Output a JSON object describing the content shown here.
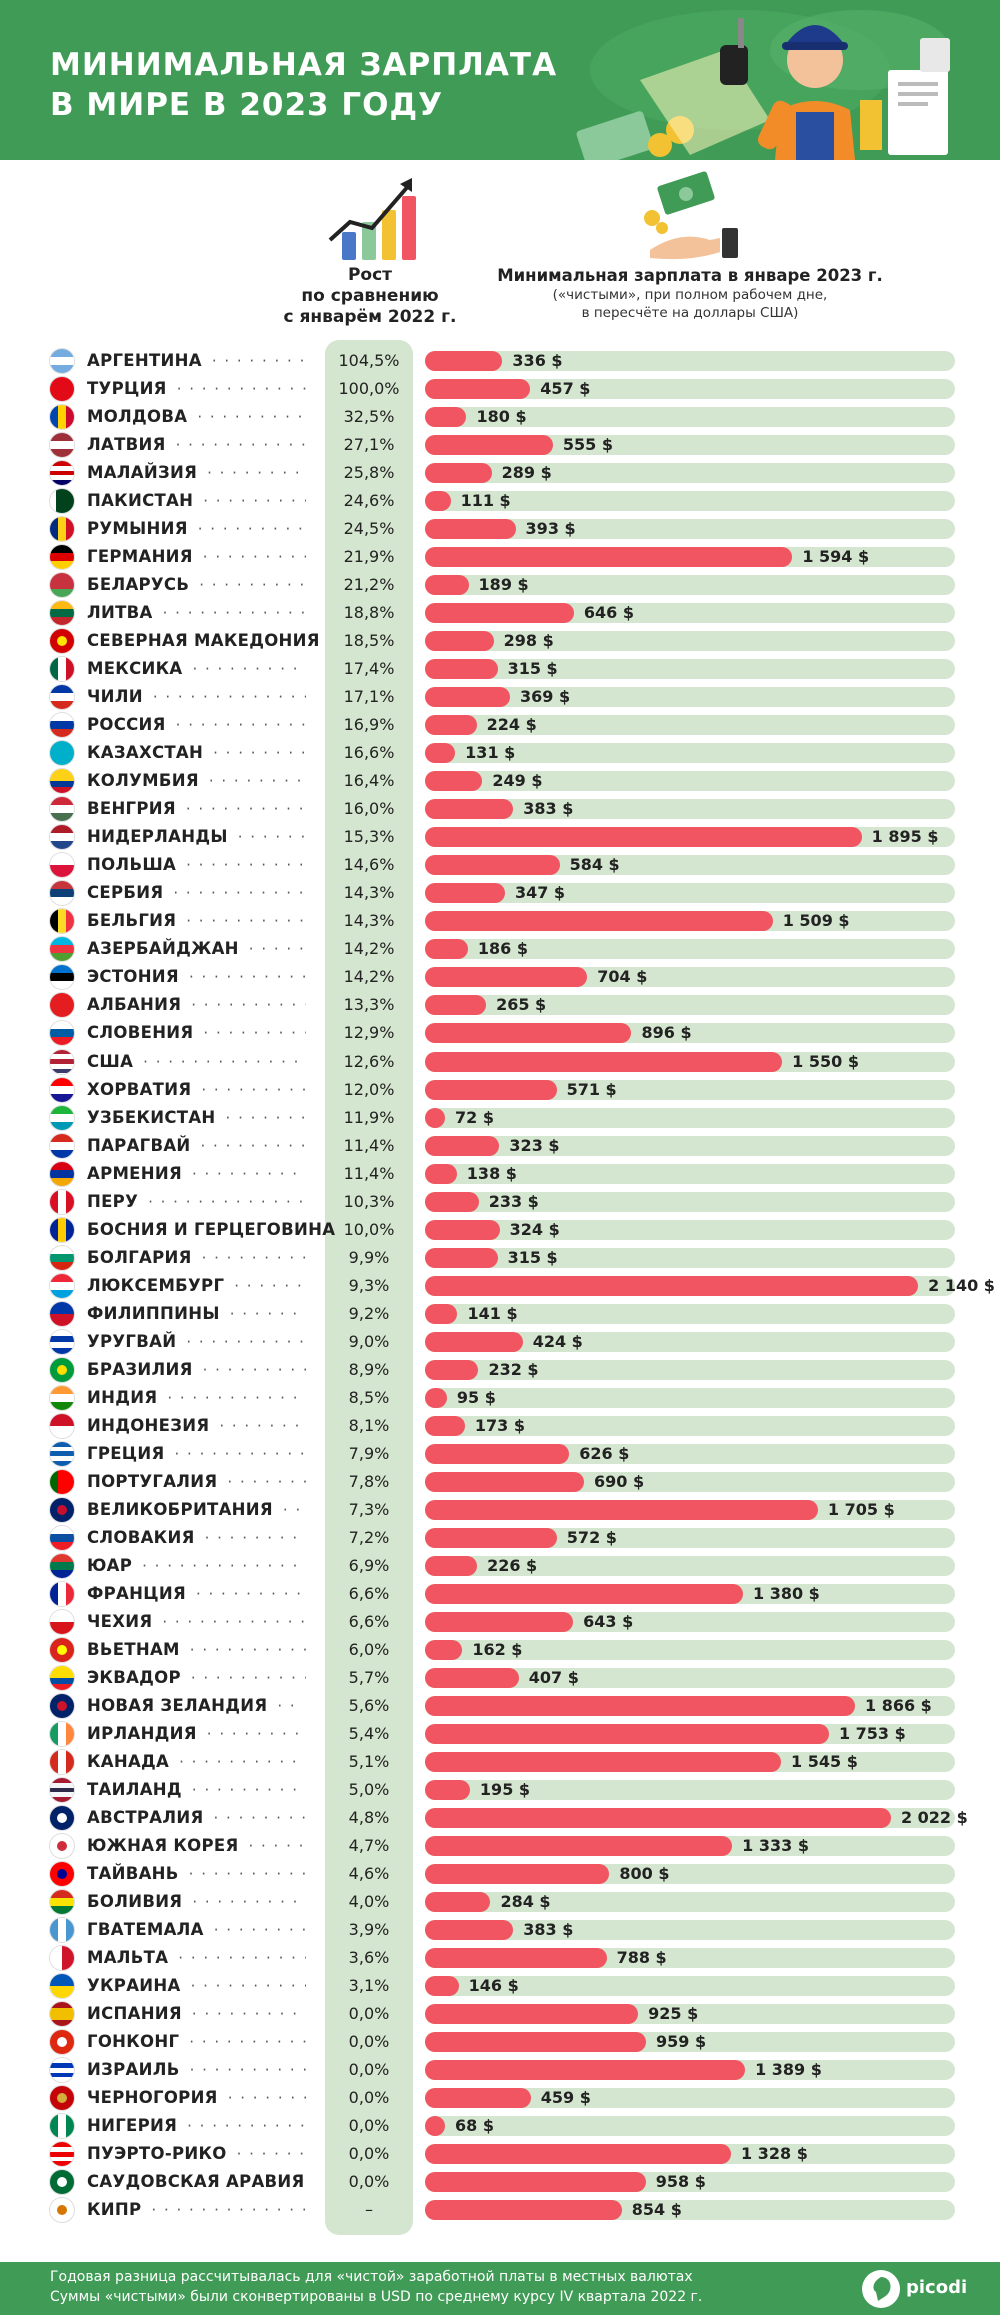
{
  "header": {
    "title_line1": "МИНИМАЛЬНАЯ ЗАРПЛАТА",
    "title_line2": "В МИРЕ В 2023 ГОДУ"
  },
  "legend": {
    "growth_line1": "Рост",
    "growth_line2": "по сравнению",
    "growth_line3": "с январём 2022 г.",
    "wage_title": "Минимальная зарплата в январе 2023 г.",
    "wage_sub1": "(«чистыми», при полном рабочем дне,",
    "wage_sub2": "в пересчёте на доллары США)"
  },
  "footer": {
    "note1": "Годовая разница рассчитывалась для «чистой» заработной платы в местных валютах",
    "note2": "Суммы «чистыми» были сконвертированы в USD по среднему курсу IV квартала 2022 г.",
    "logo": "picodi"
  },
  "colors": {
    "brand_green": "#3f9b55",
    "bar_red": "#f25562",
    "track_green": "#d4e6cf"
  },
  "chart_data": {
    "type": "bar",
    "title": "МИНИМАЛЬНАЯ ЗАРПЛАТА В МИРЕ В 2023 ГОДУ",
    "orientation": "horizontal",
    "value_unit": "$",
    "xlim": [
      0,
      2300
    ],
    "columns": [
      "Рост по сравнению с январём 2022 г.",
      "Минимальная зарплата в январе 2023 г."
    ],
    "rows": [
      {
        "country": "АРГЕНТИНА",
        "growth": "104,5%",
        "wage": 336,
        "wage_label": "336 $",
        "flag": "ar"
      },
      {
        "country": "ТУРЦИЯ",
        "growth": "100,0%",
        "wage": 457,
        "wage_label": "457 $",
        "flag": "tr"
      },
      {
        "country": "МОЛДОВА",
        "growth": "32,5%",
        "wage": 180,
        "wage_label": "180 $",
        "flag": "md"
      },
      {
        "country": "ЛАТВИЯ",
        "growth": "27,1%",
        "wage": 555,
        "wage_label": "555 $",
        "flag": "lv"
      },
      {
        "country": "МАЛАЙЗИЯ",
        "growth": "25,8%",
        "wage": 289,
        "wage_label": "289 $",
        "flag": "my"
      },
      {
        "country": "ПАКИСТАН",
        "growth": "24,6%",
        "wage": 111,
        "wage_label": "111 $",
        "flag": "pk"
      },
      {
        "country": "РУМЫНИЯ",
        "growth": "24,5%",
        "wage": 393,
        "wage_label": "393 $",
        "flag": "ro"
      },
      {
        "country": "ГЕРМАНИЯ",
        "growth": "21,9%",
        "wage": 1594,
        "wage_label": "1 594 $",
        "flag": "de"
      },
      {
        "country": "БЕЛАРУСЬ",
        "growth": "21,2%",
        "wage": 189,
        "wage_label": "189 $",
        "flag": "by"
      },
      {
        "country": "ЛИТВА",
        "growth": "18,8%",
        "wage": 646,
        "wage_label": "646 $",
        "flag": "lt"
      },
      {
        "country": "СЕВЕРНАЯ МАКЕДОНИЯ",
        "growth": "18,5%",
        "wage": 298,
        "wage_label": "298 $",
        "flag": "mk"
      },
      {
        "country": "МЕКСИКА",
        "growth": "17,4%",
        "wage": 315,
        "wage_label": "315 $",
        "flag": "mx"
      },
      {
        "country": "ЧИЛИ",
        "growth": "17,1%",
        "wage": 369,
        "wage_label": "369 $",
        "flag": "cl"
      },
      {
        "country": "РОССИЯ",
        "growth": "16,9%",
        "wage": 224,
        "wage_label": "224 $",
        "flag": "ru"
      },
      {
        "country": "КАЗАХСТАН",
        "growth": "16,6%",
        "wage": 131,
        "wage_label": "131 $",
        "flag": "kz"
      },
      {
        "country": "КОЛУМБИЯ",
        "growth": "16,4%",
        "wage": 249,
        "wage_label": "249 $",
        "flag": "co"
      },
      {
        "country": "ВЕНГРИЯ",
        "growth": "16,0%",
        "wage": 383,
        "wage_label": "383 $",
        "flag": "hu"
      },
      {
        "country": "НИДЕРЛАНДЫ",
        "growth": "15,3%",
        "wage": 1895,
        "wage_label": "1 895 $",
        "flag": "nl"
      },
      {
        "country": "ПОЛЬША",
        "growth": "14,6%",
        "wage": 584,
        "wage_label": "584 $",
        "flag": "pl"
      },
      {
        "country": "СЕРБИЯ",
        "growth": "14,3%",
        "wage": 347,
        "wage_label": "347 $",
        "flag": "rs"
      },
      {
        "country": "БЕЛЬГИЯ",
        "growth": "14,3%",
        "wage": 1509,
        "wage_label": "1 509 $",
        "flag": "be"
      },
      {
        "country": "АЗЕРБАЙДЖАН",
        "growth": "14,2%",
        "wage": 186,
        "wage_label": "186 $",
        "flag": "az"
      },
      {
        "country": "ЭСТОНИЯ",
        "growth": "14,2%",
        "wage": 704,
        "wage_label": "704 $",
        "flag": "ee"
      },
      {
        "country": "АЛБАНИЯ",
        "growth": "13,3%",
        "wage": 265,
        "wage_label": "265 $",
        "flag": "al"
      },
      {
        "country": "СЛОВЕНИЯ",
        "growth": "12,9%",
        "wage": 896,
        "wage_label": "896 $",
        "flag": "si"
      },
      {
        "country": "США",
        "growth": "12,6%",
        "wage": 1550,
        "wage_label": "1 550 $",
        "flag": "us"
      },
      {
        "country": "ХОРВАТИЯ",
        "growth": "12,0%",
        "wage": 571,
        "wage_label": "571 $",
        "flag": "hr"
      },
      {
        "country": "УЗБЕКИСТАН",
        "growth": "11,9%",
        "wage": 72,
        "wage_label": "72 $",
        "flag": "uz"
      },
      {
        "country": "ПАРАГВАЙ",
        "growth": "11,4%",
        "wage": 323,
        "wage_label": "323 $",
        "flag": "py"
      },
      {
        "country": "АРМЕНИЯ",
        "growth": "11,4%",
        "wage": 138,
        "wage_label": "138 $",
        "flag": "am"
      },
      {
        "country": "ПЕРУ",
        "growth": "10,3%",
        "wage": 233,
        "wage_label": "233 $",
        "flag": "pe"
      },
      {
        "country": "БОСНИЯ И ГЕРЦЕГОВИНА",
        "growth": "10,0%",
        "wage": 324,
        "wage_label": "324 $",
        "flag": "ba"
      },
      {
        "country": "БОЛГАРИЯ",
        "growth": "9,9%",
        "wage": 315,
        "wage_label": "315 $",
        "flag": "bg"
      },
      {
        "country": "ЛЮКСЕМБУРГ",
        "growth": "9,3%",
        "wage": 2140,
        "wage_label": "2 140 $",
        "flag": "lu"
      },
      {
        "country": "ФИЛИППИНЫ",
        "growth": "9,2%",
        "wage": 141,
        "wage_label": "141 $",
        "flag": "ph"
      },
      {
        "country": "УРУГВАЙ",
        "growth": "9,0%",
        "wage": 424,
        "wage_label": "424 $",
        "flag": "uy"
      },
      {
        "country": "БРАЗИЛИЯ",
        "growth": "8,9%",
        "wage": 232,
        "wage_label": "232 $",
        "flag": "br"
      },
      {
        "country": "ИНДИЯ",
        "growth": "8,5%",
        "wage": 95,
        "wage_label": "95 $",
        "flag": "in"
      },
      {
        "country": "ИНДОНЕЗИЯ",
        "growth": "8,1%",
        "wage": 173,
        "wage_label": "173 $",
        "flag": "id"
      },
      {
        "country": "ГРЕЦИЯ",
        "growth": "7,9%",
        "wage": 626,
        "wage_label": "626 $",
        "flag": "gr"
      },
      {
        "country": "ПОРТУГАЛИЯ",
        "growth": "7,8%",
        "wage": 690,
        "wage_label": "690 $",
        "flag": "pt"
      },
      {
        "country": "ВЕЛИКОБРИТАНИЯ",
        "growth": "7,3%",
        "wage": 1705,
        "wage_label": "1 705 $",
        "flag": "gb"
      },
      {
        "country": "СЛОВАКИЯ",
        "growth": "7,2%",
        "wage": 572,
        "wage_label": "572 $",
        "flag": "sk"
      },
      {
        "country": "ЮАР",
        "growth": "6,9%",
        "wage": 226,
        "wage_label": "226 $",
        "flag": "za"
      },
      {
        "country": "ФРАНЦИЯ",
        "growth": "6,6%",
        "wage": 1380,
        "wage_label": "1 380 $",
        "flag": "fr"
      },
      {
        "country": "ЧЕХИЯ",
        "growth": "6,6%",
        "wage": 643,
        "wage_label": "643 $",
        "flag": "cz"
      },
      {
        "country": "ВЬЕТНАМ",
        "growth": "6,0%",
        "wage": 162,
        "wage_label": "162 $",
        "flag": "vn"
      },
      {
        "country": "ЭКВАДОР",
        "growth": "5,7%",
        "wage": 407,
        "wage_label": "407 $",
        "flag": "ec"
      },
      {
        "country": "НОВАЯ ЗЕЛАНДИЯ",
        "growth": "5,6%",
        "wage": 1866,
        "wage_label": "1 866 $",
        "flag": "nz"
      },
      {
        "country": "ИРЛАНДИЯ",
        "growth": "5,4%",
        "wage": 1753,
        "wage_label": "1 753 $",
        "flag": "ie"
      },
      {
        "country": "КАНАДА",
        "growth": "5,1%",
        "wage": 1545,
        "wage_label": "1 545 $",
        "flag": "ca"
      },
      {
        "country": "ТАИЛАНД",
        "growth": "5,0%",
        "wage": 195,
        "wage_label": "195 $",
        "flag": "th"
      },
      {
        "country": "АВСТРАЛИЯ",
        "growth": "4,8%",
        "wage": 2022,
        "wage_label": "2 022 $",
        "flag": "au"
      },
      {
        "country": "ЮЖНАЯ КОРЕЯ",
        "growth": "4,7%",
        "wage": 1333,
        "wage_label": "1 333 $",
        "flag": "kr"
      },
      {
        "country": "ТАЙВАНЬ",
        "growth": "4,6%",
        "wage": 800,
        "wage_label": "800 $",
        "flag": "tw"
      },
      {
        "country": "БОЛИВИЯ",
        "growth": "4,0%",
        "wage": 284,
        "wage_label": "284 $",
        "flag": "bo"
      },
      {
        "country": "ГВАТЕМАЛА",
        "growth": "3,9%",
        "wage": 383,
        "wage_label": "383 $",
        "flag": "gt"
      },
      {
        "country": "МАЛЬТА",
        "growth": "3,6%",
        "wage": 788,
        "wage_label": "788 $",
        "flag": "mt"
      },
      {
        "country": "УКРАИНА",
        "growth": "3,1%",
        "wage": 146,
        "wage_label": "146 $",
        "flag": "ua"
      },
      {
        "country": "ИСПАНИЯ",
        "growth": "0,0%",
        "wage": 925,
        "wage_label": "925 $",
        "flag": "es"
      },
      {
        "country": "ГОНКОНГ",
        "growth": "0,0%",
        "wage": 959,
        "wage_label": "959 $",
        "flag": "hk"
      },
      {
        "country": "ИЗРАИЛЬ",
        "growth": "0,0%",
        "wage": 1389,
        "wage_label": "1 389 $",
        "flag": "il"
      },
      {
        "country": "ЧЕРНОГОРИЯ",
        "growth": "0,0%",
        "wage": 459,
        "wage_label": "459 $",
        "flag": "me"
      },
      {
        "country": "НИГЕРИЯ",
        "growth": "0,0%",
        "wage": 68,
        "wage_label": "68 $",
        "flag": "ng"
      },
      {
        "country": "ПУЭРТО-РИКО",
        "growth": "0,0%",
        "wage": 1328,
        "wage_label": "1 328 $",
        "flag": "pr"
      },
      {
        "country": "САУДОВСКАЯ АРАВИЯ",
        "growth": "0,0%",
        "wage": 958,
        "wage_label": "958 $",
        "flag": "sa"
      },
      {
        "country": "КИПР",
        "growth": "–",
        "wage": 854,
        "wage_label": "854 $",
        "flag": "cy"
      }
    ]
  }
}
